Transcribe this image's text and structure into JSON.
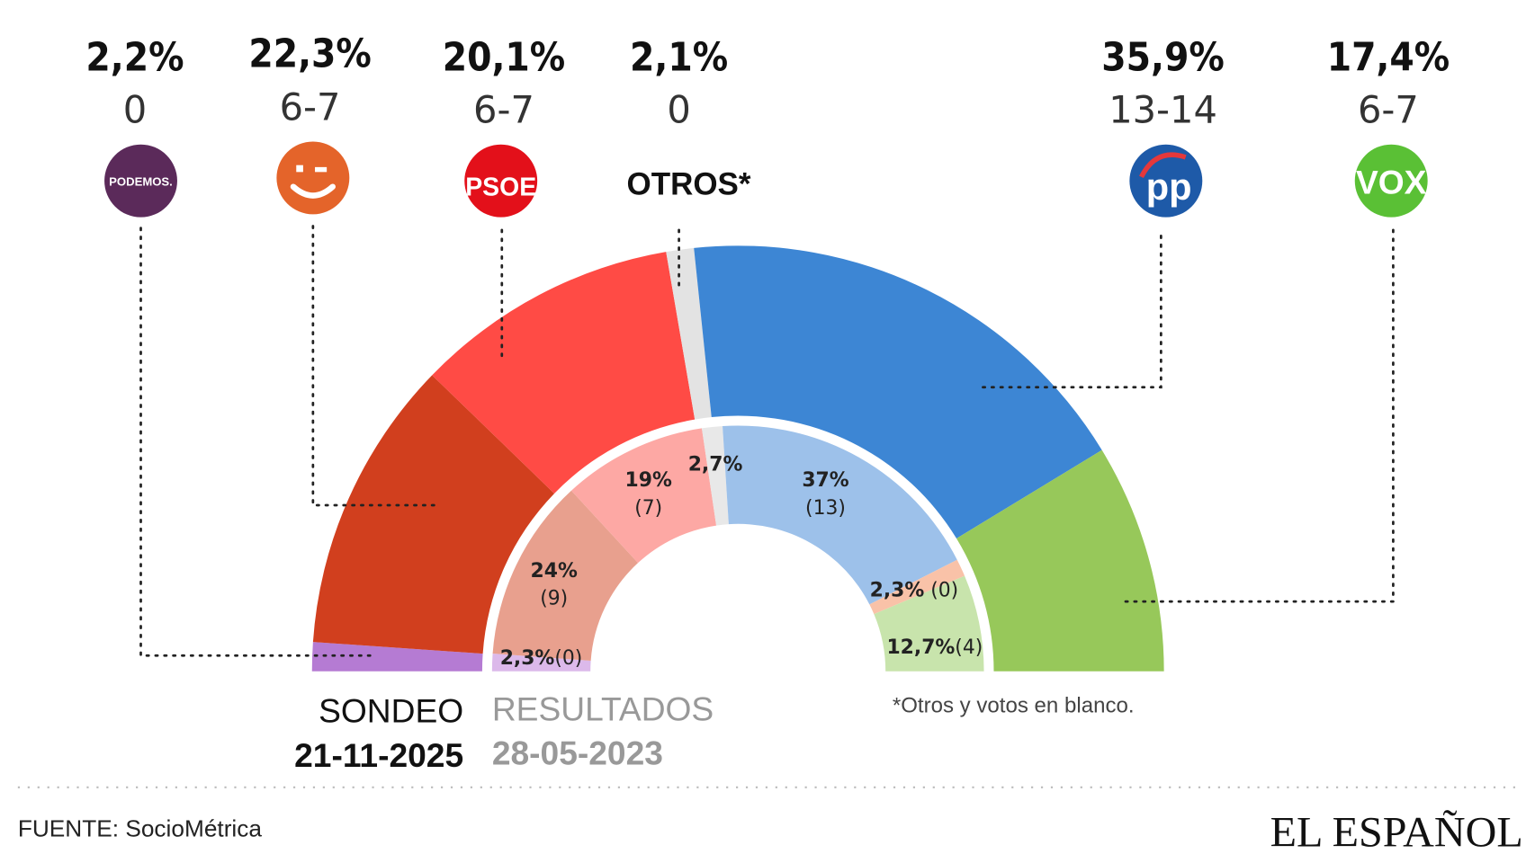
{
  "chart_data": {
    "type": "pie",
    "subtype": "double-semicircle (parliament)",
    "outer_ring": {
      "label": "SONDEO",
      "date": "21-11-2025",
      "parties": [
        {
          "party": "PODEMOS",
          "pct": 2.2,
          "pct_label": "2,2%",
          "seats": "0",
          "color": "#b57bd3"
        },
        {
          "party": "Más Madrid",
          "pct": 22.3,
          "pct_label": "22,3%",
          "seats": "6-7",
          "color": "#d13f1e"
        },
        {
          "party": "PSOE",
          "pct": 20.1,
          "pct_label": "20,1%",
          "seats": "6-7",
          "color": "#ff4b45"
        },
        {
          "party": "OTROS*",
          "pct": 2.1,
          "pct_label": "2,1%",
          "seats": "0",
          "color": "#e3e3e3"
        },
        {
          "party": "PP",
          "pct": 35.9,
          "pct_label": "35,9%",
          "seats": "13-14",
          "color": "#3d86d4"
        },
        {
          "party": "VOX",
          "pct": 17.4,
          "pct_label": "17,4%",
          "seats": "6-7",
          "color": "#97c85a"
        }
      ]
    },
    "inner_ring": {
      "label": "RESULTADOS",
      "date": "28-05-2023",
      "segments": [
        {
          "pct": 2.3,
          "label": "2,3%",
          "seats": "(0)",
          "color": "#dcb9ea"
        },
        {
          "pct": 24,
          "label": "24%",
          "seats": "(9)",
          "color": "#e8a08e"
        },
        {
          "pct": 19,
          "label": "19%",
          "seats": "(7)",
          "color": "#fda8a4"
        },
        {
          "pct": 2.7,
          "label": "2,7%",
          "seats": "",
          "color": "#e8e8e8"
        },
        {
          "pct": 37,
          "label": "37%",
          "seats": "(13)",
          "color": "#9dc1ea"
        },
        {
          "pct": 2.3,
          "label": "2,3%",
          "seats": "(0)",
          "color": "#f9c2a8"
        },
        {
          "pct": 12.7,
          "label": "12,7%",
          "seats": "(4)",
          "color": "#c8e4ac"
        }
      ]
    }
  },
  "logos": {
    "podemos": {
      "text": "PODEMOS.",
      "color": "#5b2a5a"
    },
    "mas_madrid": {
      "color": "#e4642a"
    },
    "psoe": {
      "text": "PSOE",
      "color": "#e3101a"
    },
    "otros": {
      "text": "OTROS*"
    },
    "pp": {
      "text": "pp",
      "color": "#1e5aa8"
    },
    "vox": {
      "text": "VOX",
      "color": "#5ac035"
    }
  },
  "footnote": "*Otros y votos en blanco.",
  "source": "FUENTE: SocioMétrica",
  "brand": "EL ESPAÑOL"
}
